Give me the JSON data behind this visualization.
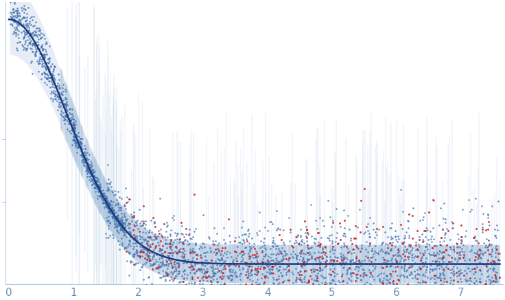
{
  "xlim": [
    -0.05,
    7.65
  ],
  "ylim": [
    -0.08,
    1.05
  ],
  "x_ticks": [
    0,
    1,
    2,
    3,
    4,
    5,
    6,
    7
  ],
  "smooth_curve_color": "#1a3a7a",
  "error_bar_color": "#b0c8e0",
  "fill_color": "#c8d8ec",
  "blue_dot_color": "#3a6aaa",
  "red_dot_color": "#cc2020",
  "background_color": "#ffffff",
  "tick_label_color": "#7090b0",
  "figsize": [
    7.36,
    4.37
  ],
  "dpi": 100,
  "noise_seed": 123,
  "Rg": 1.35,
  "I0": 0.98,
  "bg": 0.0,
  "n_smooth": 600,
  "n_main_scatter": 2500,
  "n_eb": 2000
}
